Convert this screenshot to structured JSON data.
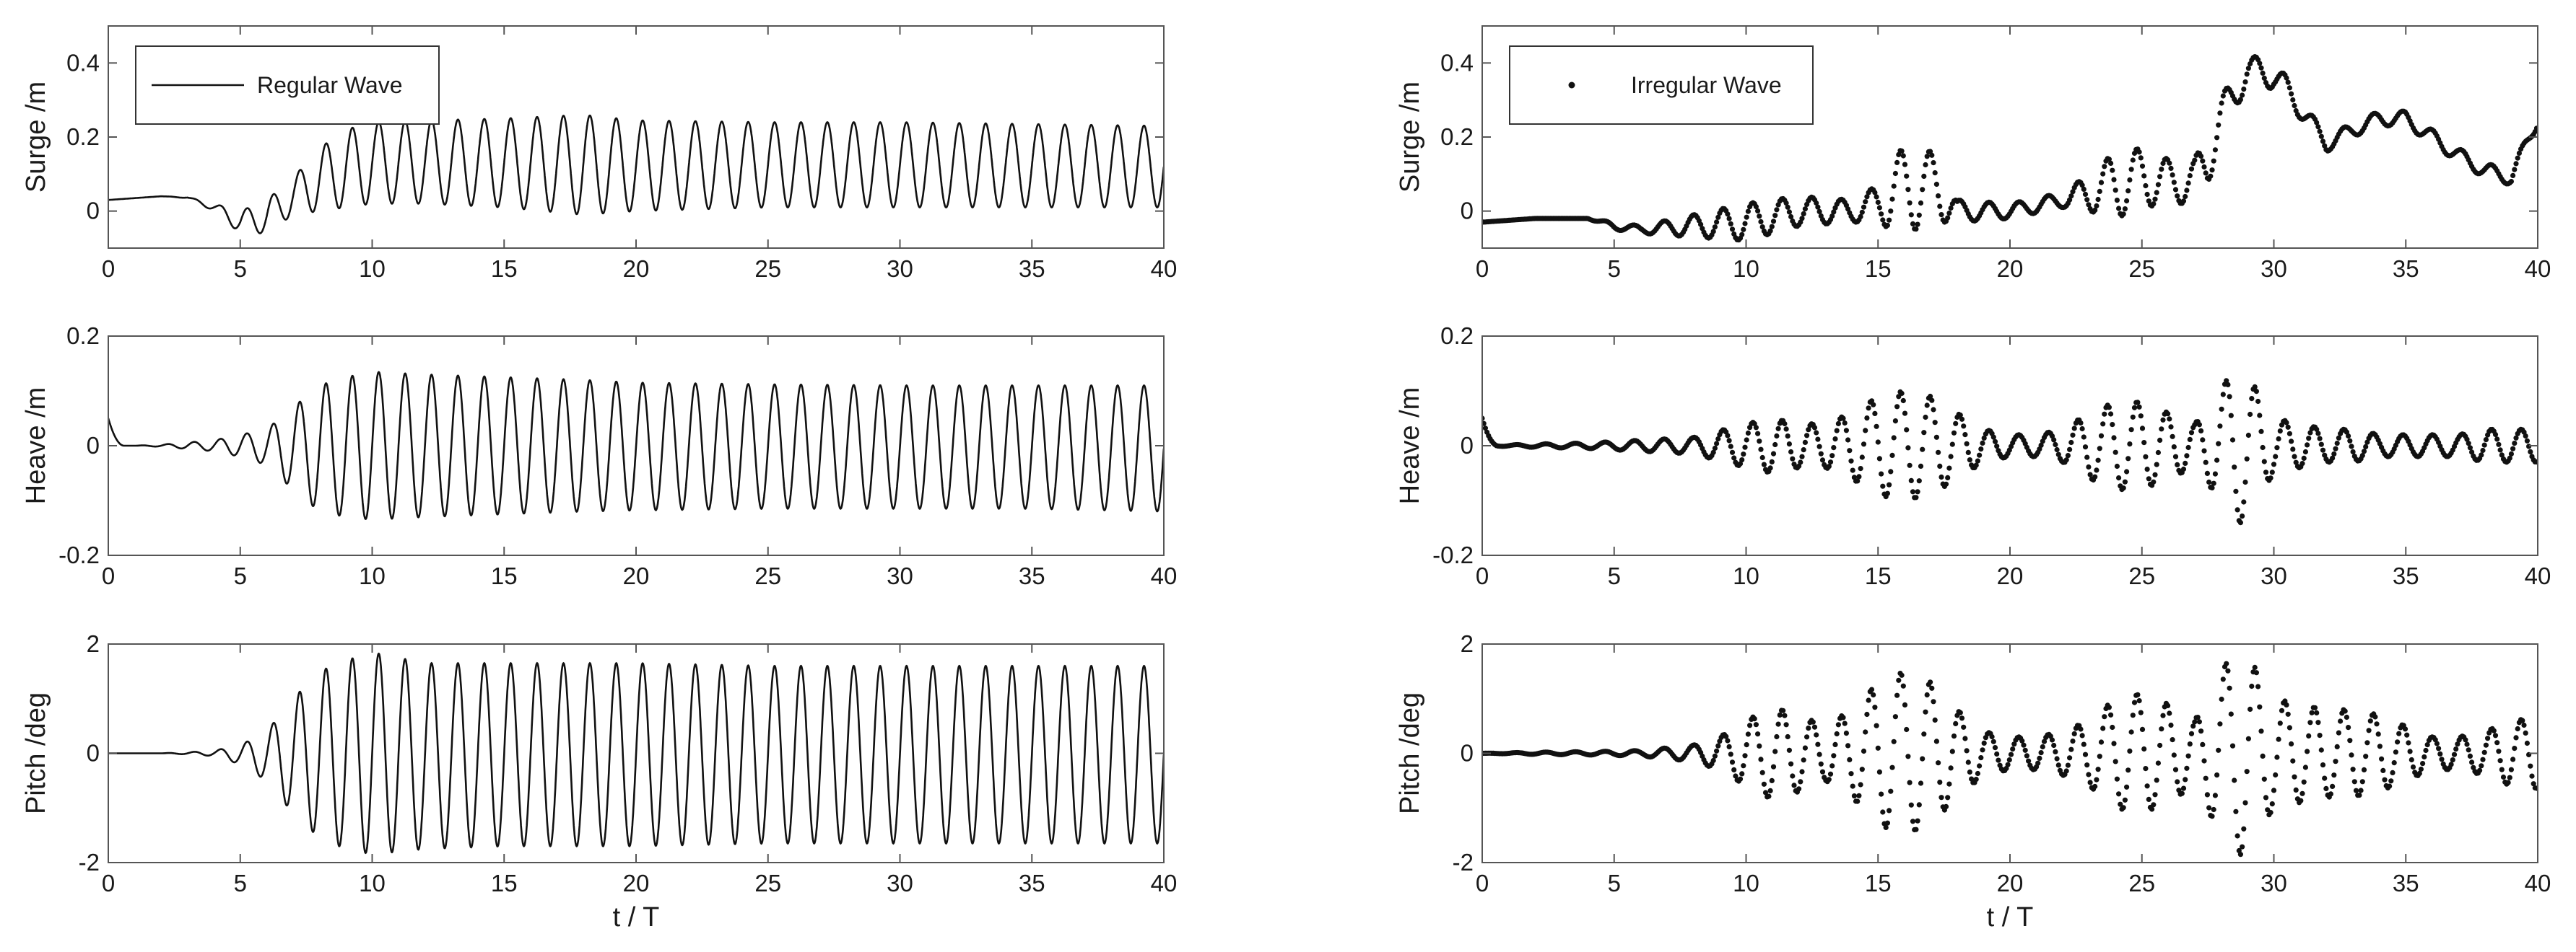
{
  "figure": {
    "left_column": {
      "legend": "Regular Wave",
      "xlabel": "t / T"
    },
    "right_column": {
      "legend": "Irregular Wave",
      "xlabel": "t / T"
    }
  },
  "chart_data": [
    {
      "id": "surge-regular",
      "type": "line",
      "series_style": "solid",
      "title": "",
      "xlabel": "",
      "ylabel": "Surge /m",
      "xlim": [
        0,
        40
      ],
      "ylim": [
        -0.1,
        0.5
      ],
      "xticks": [
        "0",
        "5",
        "10",
        "15",
        "20",
        "25",
        "30",
        "35",
        "40"
      ],
      "yticks": [
        {
          "value": 0,
          "label": "0"
        },
        {
          "value": 0.2,
          "label": "0.2"
        },
        {
          "value": 0.4,
          "label": "0.4"
        }
      ],
      "legend": {
        "label": "Regular Wave",
        "position": "top-left"
      },
      "grid": false,
      "x": [
        0,
        1,
        2,
        3,
        4,
        5,
        6,
        7,
        8,
        9,
        10,
        12,
        15,
        18,
        20,
        25,
        30,
        35,
        40
      ],
      "envelope_upper": [
        0.03,
        0.035,
        0.04,
        0.038,
        0.02,
        0.0,
        0.03,
        0.09,
        0.17,
        0.22,
        0.24,
        0.245,
        0.25,
        0.26,
        0.245,
        0.24,
        0.24,
        0.235,
        0.23
      ],
      "envelope_lower": [
        0.03,
        0.035,
        0.04,
        0.035,
        0.0,
        -0.06,
        -0.06,
        -0.01,
        0.0,
        0.01,
        0.02,
        0.02,
        0.01,
        -0.01,
        0.0,
        0.01,
        0.01,
        0.01,
        0.01
      ],
      "period_T": 1
    },
    {
      "id": "heave-regular",
      "type": "line",
      "series_style": "solid",
      "title": "",
      "xlabel": "",
      "ylabel": "Heave /m",
      "xlim": [
        0,
        40
      ],
      "ylim": [
        -0.2,
        0.2
      ],
      "xticks": [
        "0",
        "5",
        "10",
        "15",
        "20",
        "25",
        "30",
        "35",
        "40"
      ],
      "yticks": [
        {
          "value": -0.2,
          "label": "-0.2"
        },
        {
          "value": 0,
          "label": "0"
        },
        {
          "value": 0.2,
          "label": "0.2"
        }
      ],
      "grid": false,
      "x": [
        0,
        1,
        2,
        3,
        4,
        5,
        6,
        7,
        8,
        9,
        10,
        12,
        15,
        18,
        20,
        25,
        30,
        35,
        40
      ],
      "envelope_upper": [
        0.0,
        0.0,
        0.002,
        0.006,
        0.01,
        0.02,
        0.03,
        0.07,
        0.11,
        0.125,
        0.135,
        0.13,
        0.125,
        0.12,
        0.115,
        0.112,
        0.11,
        0.11,
        0.11
      ],
      "envelope_lower": [
        0.0,
        0.0,
        -0.002,
        -0.006,
        -0.01,
        -0.02,
        -0.035,
        -0.08,
        -0.12,
        -0.13,
        -0.135,
        -0.13,
        -0.125,
        -0.12,
        -0.118,
        -0.115,
        -0.115,
        -0.115,
        -0.12
      ],
      "start_value": 0.05,
      "period_T": 1
    },
    {
      "id": "pitch-regular",
      "type": "line",
      "series_style": "solid",
      "title": "",
      "xlabel": "t / T",
      "ylabel": "Pitch /deg",
      "xlim": [
        0,
        40
      ],
      "ylim": [
        -2,
        2
      ],
      "xticks": [
        "0",
        "5",
        "10",
        "15",
        "20",
        "25",
        "30",
        "35",
        "40"
      ],
      "yticks": [
        {
          "value": -2,
          "label": "-2"
        },
        {
          "value": 0,
          "label": "0"
        },
        {
          "value": 2,
          "label": "2"
        }
      ],
      "grid": false,
      "x": [
        0,
        1,
        2,
        3,
        4,
        5,
        6,
        7,
        8,
        9,
        10,
        12,
        15,
        18,
        20,
        25,
        30,
        35,
        40
      ],
      "envelope_upper": [
        0,
        0,
        0,
        0.02,
        0.05,
        0.15,
        0.4,
        1.0,
        1.5,
        1.7,
        1.85,
        1.65,
        1.65,
        1.65,
        1.65,
        1.6,
        1.6,
        1.6,
        1.6
      ],
      "envelope_lower": [
        0,
        0,
        0,
        -0.02,
        -0.05,
        -0.2,
        -0.5,
        -1.1,
        -1.55,
        -1.75,
        -1.85,
        -1.75,
        -1.7,
        -1.7,
        -1.7,
        -1.65,
        -1.65,
        -1.65,
        -1.65
      ],
      "period_T": 1
    },
    {
      "id": "surge-irregular",
      "type": "scatter",
      "series_style": "dots",
      "title": "",
      "xlabel": "",
      "ylabel": "Surge /m",
      "xlim": [
        0,
        40
      ],
      "ylim": [
        -0.1,
        0.5
      ],
      "xticks": [
        "0",
        "5",
        "10",
        "15",
        "20",
        "25",
        "30",
        "35",
        "40"
      ],
      "yticks": [
        {
          "value": 0,
          "label": "0"
        },
        {
          "value": 0.2,
          "label": "0.2"
        },
        {
          "value": 0.4,
          "label": "0.4"
        }
      ],
      "legend": {
        "label": "Irregular Wave",
        "position": "top-left"
      },
      "grid": false,
      "x": [
        0,
        2,
        4,
        5,
        6,
        8,
        10,
        12,
        14,
        15,
        15.5,
        16.5,
        17.5,
        18,
        20,
        22,
        23,
        24,
        25,
        26,
        27,
        27.5,
        28,
        29,
        30,
        31,
        32,
        33,
        34,
        35,
        36,
        37,
        38,
        39,
        40
      ],
      "mean": [
        -0.03,
        -0.02,
        -0.02,
        -0.04,
        -0.05,
        -0.04,
        -0.03,
        0.0,
        0.0,
        0.02,
        0.05,
        0.07,
        0.05,
        0.0,
        0.0,
        0.03,
        0.05,
        0.07,
        0.09,
        0.08,
        0.08,
        0.15,
        0.25,
        0.38,
        0.37,
        0.28,
        0.18,
        0.22,
        0.25,
        0.25,
        0.2,
        0.15,
        0.11,
        0.09,
        0.25
      ],
      "amplitude": [
        0.0,
        0.0,
        0.0,
        0.01,
        0.01,
        0.03,
        0.05,
        0.04,
        0.03,
        0.05,
        0.1,
        0.12,
        0.08,
        0.03,
        0.02,
        0.02,
        0.05,
        0.09,
        0.08,
        0.06,
        0.06,
        0.08,
        0.06,
        0.04,
        0.04,
        0.03,
        0.02,
        0.02,
        0.02,
        0.02,
        0.02,
        0.02,
        0.02,
        0.02,
        0.02
      ],
      "period_T": 1.12
    },
    {
      "id": "heave-irregular",
      "type": "scatter",
      "series_style": "dots",
      "title": "",
      "xlabel": "",
      "ylabel": "Heave /m",
      "xlim": [
        0,
        40
      ],
      "ylim": [
        -0.2,
        0.2
      ],
      "xticks": [
        "0",
        "5",
        "10",
        "15",
        "20",
        "25",
        "30",
        "35",
        "40"
      ],
      "yticks": [
        {
          "value": -0.2,
          "label": "-0.2"
        },
        {
          "value": 0,
          "label": "0"
        },
        {
          "value": 0.2,
          "label": "0.2"
        }
      ],
      "grid": false,
      "x": [
        0,
        2,
        4,
        6,
        8,
        10,
        11,
        12,
        13,
        14,
        15,
        16,
        17,
        18,
        19,
        20,
        21,
        22,
        23,
        24,
        25,
        26,
        27,
        28,
        28.5,
        29,
        30,
        31,
        32,
        33,
        34,
        35,
        36,
        37,
        38,
        39,
        40
      ],
      "amplitude": [
        0.0,
        0.003,
        0.005,
        0.01,
        0.015,
        0.04,
        0.05,
        0.04,
        0.04,
        0.06,
        0.09,
        0.1,
        0.09,
        0.06,
        0.03,
        0.02,
        0.02,
        0.03,
        0.06,
        0.08,
        0.08,
        0.06,
        0.04,
        0.1,
        0.15,
        0.13,
        0.05,
        0.04,
        0.03,
        0.03,
        0.02,
        0.02,
        0.02,
        0.02,
        0.03,
        0.03,
        0.03
      ],
      "start_value": 0.05,
      "period_T": 1.12
    },
    {
      "id": "pitch-irregular",
      "type": "scatter",
      "series_style": "dots",
      "title": "",
      "xlabel": "t / T",
      "ylabel": "Pitch /deg",
      "xlim": [
        0,
        40
      ],
      "ylim": [
        -2,
        2
      ],
      "xticks": [
        "0",
        "5",
        "10",
        "15",
        "20",
        "25",
        "30",
        "35",
        "40"
      ],
      "yticks": [
        {
          "value": -2,
          "label": "-2"
        },
        {
          "value": 0,
          "label": "0"
        },
        {
          "value": 2,
          "label": "2"
        }
      ],
      "grid": false,
      "x": [
        0,
        2,
        4,
        6,
        8,
        9,
        10,
        11,
        12,
        13,
        14,
        15,
        16,
        17,
        18,
        19,
        20,
        21,
        22,
        23,
        24,
        25,
        26,
        27,
        28,
        28.5,
        29,
        30,
        31,
        32,
        33,
        34,
        35,
        36,
        37,
        38,
        39,
        40
      ],
      "amplitude": [
        0.0,
        0.02,
        0.03,
        0.05,
        0.15,
        0.3,
        0.6,
        0.85,
        0.7,
        0.5,
        0.8,
        1.3,
        1.5,
        1.3,
        0.8,
        0.4,
        0.3,
        0.3,
        0.4,
        0.6,
        1.0,
        1.1,
        0.9,
        0.6,
        1.5,
        1.9,
        1.8,
        1.0,
        0.9,
        0.8,
        0.8,
        0.7,
        0.5,
        0.3,
        0.3,
        0.4,
        0.6,
        0.65
      ],
      "period_T": 1.12
    }
  ]
}
